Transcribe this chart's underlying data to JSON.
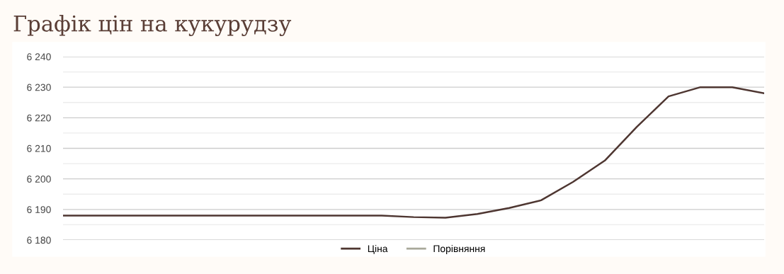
{
  "chart_data": {
    "type": "line",
    "title": "Графік цін на кукурудзу",
    "categories": [
      null,
      null,
      null,
      null,
      null,
      null,
      null,
      null,
      null,
      null,
      null,
      null,
      null,
      null,
      null,
      null,
      null,
      null,
      null,
      null,
      null,
      null,
      null
    ],
    "series": [
      {
        "name": "Ціна",
        "color": "#4e3631",
        "values": [
          6188,
          6188,
          6188,
          6188,
          6188,
          6188,
          6188,
          6188,
          6188,
          6188,
          6188,
          6187.5,
          6187.3,
          6188.5,
          6190.5,
          6193,
          6199,
          6206,
          6217,
          6227,
          6230,
          6230,
          6228
        ]
      },
      {
        "name": "Порівняння",
        "color": "#a8a89a",
        "values": [
          null,
          null,
          null,
          null,
          null,
          null,
          null,
          null,
          null,
          null,
          null,
          null,
          null,
          null,
          null,
          null,
          null,
          null,
          null,
          null,
          null,
          null,
          null
        ]
      }
    ],
    "ylim": [
      6180,
      6240
    ],
    "yticks": [
      {
        "value": 6180,
        "label": "6 180"
      },
      {
        "value": 6185,
        "label": null
      },
      {
        "value": 6190,
        "label": "6 190"
      },
      {
        "value": 6195,
        "label": null
      },
      {
        "value": 6200,
        "label": "6 200"
      },
      {
        "value": 6205,
        "label": null
      },
      {
        "value": 6210,
        "label": "6 210"
      },
      {
        "value": 6215,
        "label": null
      },
      {
        "value": 6220,
        "label": "6 220"
      },
      {
        "value": 6225,
        "label": null
      },
      {
        "value": 6230,
        "label": "6 230"
      },
      {
        "value": 6235,
        "label": null
      },
      {
        "value": 6240,
        "label": "6 240"
      }
    ],
    "grid": "y",
    "legend": "bottom",
    "marker": "none",
    "line_style": "solid"
  }
}
